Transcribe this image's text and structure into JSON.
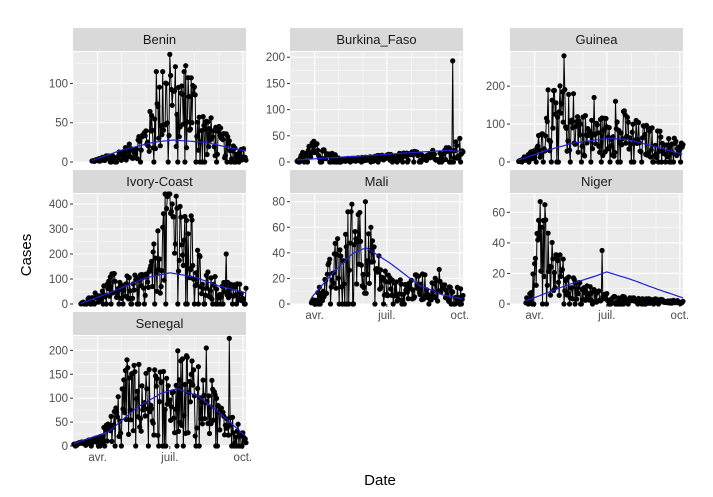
{
  "chart_data": {
    "type": "line",
    "facet": "wrap",
    "xlabel": "Date",
    "ylabel": "Cases",
    "x_domain": [
      "2020-03-01",
      "2020-10-05"
    ],
    "x_ticks": [
      {
        "label": "avr.",
        "date": "2020-04-01"
      },
      {
        "label": "juil.",
        "date": "2020-07-01"
      },
      {
        "label": "oct.",
        "date": "2020-10-01"
      }
    ],
    "colors": {
      "series": "#000000",
      "smooth": "#1f1fd6",
      "panel_bg": "#ebebeb",
      "grid": "#ffffff",
      "strip_bg": "#d9d9d9"
    },
    "panels": [
      {
        "name": "Benin",
        "ylim": [
          0,
          140
        ],
        "yticks": [
          0,
          50,
          100
        ],
        "start": "2020-03-25",
        "end": "2020-10-05",
        "keypoints": [
          [
            "2020-03-25",
            1
          ],
          [
            "2020-04-20",
            6
          ],
          [
            "2020-05-15",
            14
          ],
          [
            "2020-06-05",
            35
          ],
          [
            "2020-06-20",
            60
          ],
          [
            "2020-07-01",
            85
          ],
          [
            "2020-07-15",
            65
          ],
          [
            "2020-07-25",
            80
          ],
          [
            "2020-08-10",
            40
          ],
          [
            "2020-08-25",
            30
          ],
          [
            "2020-09-10",
            20
          ],
          [
            "2020-10-05",
            10
          ]
        ],
        "spikes": [
          [
            "2020-06-14",
            115
          ],
          [
            "2020-06-22",
            115
          ],
          [
            "2020-07-01",
            137
          ],
          [
            "2020-07-06",
            90
          ],
          [
            "2020-07-12",
            95
          ],
          [
            "2020-07-19",
            115
          ]
        ],
        "smooth": [
          [
            "2020-03-25",
            2
          ],
          [
            "2020-05-01",
            15
          ],
          [
            "2020-06-10",
            25
          ],
          [
            "2020-07-05",
            28
          ],
          [
            "2020-08-15",
            25
          ],
          [
            "2020-09-15",
            18
          ],
          [
            "2020-10-05",
            14
          ]
        ]
      },
      {
        "name": "Burkina_Faso",
        "ylim": [
          0,
          210
        ],
        "yticks": [
          0,
          50,
          100,
          150,
          200
        ],
        "start": "2020-03-10",
        "end": "2020-10-05",
        "keypoints": [
          [
            "2020-03-10",
            2
          ],
          [
            "2020-03-28",
            25
          ],
          [
            "2020-04-15",
            12
          ],
          [
            "2020-05-10",
            4
          ],
          [
            "2020-06-10",
            6
          ],
          [
            "2020-07-10",
            9
          ],
          [
            "2020-08-10",
            12
          ],
          [
            "2020-09-10",
            15
          ],
          [
            "2020-09-25",
            25
          ],
          [
            "2020-10-05",
            22
          ]
        ],
        "spikes": [
          [
            "2020-09-22",
            193
          ],
          [
            "2020-10-01",
            45
          ]
        ],
        "smooth": [
          [
            "2020-03-10",
            4
          ],
          [
            "2020-05-01",
            9
          ],
          [
            "2020-06-15",
            13
          ],
          [
            "2020-08-01",
            18
          ],
          [
            "2020-09-15",
            22
          ],
          [
            "2020-10-05",
            20
          ]
        ]
      },
      {
        "name": "Guinea",
        "ylim": [
          0,
          290
        ],
        "yticks": [
          0,
          100,
          200
        ],
        "start": "2020-03-12",
        "end": "2020-10-05",
        "keypoints": [
          [
            "2020-03-12",
            1
          ],
          [
            "2020-04-01",
            20
          ],
          [
            "2020-04-15",
            80
          ],
          [
            "2020-05-01",
            120
          ],
          [
            "2020-05-20",
            95
          ],
          [
            "2020-06-10",
            65
          ],
          [
            "2020-07-01",
            70
          ],
          [
            "2020-07-20",
            80
          ],
          [
            "2020-08-10",
            60
          ],
          [
            "2020-09-01",
            50
          ],
          [
            "2020-09-20",
            40
          ],
          [
            "2020-10-05",
            30
          ]
        ],
        "spikes": [
          [
            "2020-04-18",
            190
          ],
          [
            "2020-05-08",
            280
          ],
          [
            "2020-05-20",
            180
          ],
          [
            "2020-06-15",
            170
          ],
          [
            "2020-07-12",
            160
          ]
        ],
        "smooth": [
          [
            "2020-03-12",
            5
          ],
          [
            "2020-04-15",
            30
          ],
          [
            "2020-05-20",
            50
          ],
          [
            "2020-07-01",
            62
          ],
          [
            "2020-07-25",
            60
          ],
          [
            "2020-09-01",
            40
          ],
          [
            "2020-10-05",
            20
          ]
        ]
      },
      {
        "name": "Ivory-Coast",
        "ylim": [
          0,
          440
        ],
        "yticks": [
          0,
          100,
          200,
          300,
          400
        ],
        "start": "2020-03-11",
        "end": "2020-10-05",
        "keypoints": [
          [
            "2020-03-11",
            1
          ],
          [
            "2020-04-01",
            30
          ],
          [
            "2020-04-20",
            70
          ],
          [
            "2020-05-15",
            60
          ],
          [
            "2020-06-05",
            90
          ],
          [
            "2020-06-20",
            200
          ],
          [
            "2020-07-01",
            350
          ],
          [
            "2020-07-15",
            250
          ],
          [
            "2020-07-25",
            230
          ],
          [
            "2020-08-10",
            90
          ],
          [
            "2020-09-01",
            60
          ],
          [
            "2020-09-20",
            50
          ],
          [
            "2020-10-05",
            40
          ]
        ],
        "spikes": [
          [
            "2020-06-28",
            430
          ],
          [
            "2020-07-04",
            400
          ],
          [
            "2020-07-14",
            390
          ],
          [
            "2020-07-20",
            350
          ],
          [
            "2020-09-10",
            200
          ]
        ],
        "smooth": [
          [
            "2020-03-11",
            2
          ],
          [
            "2020-04-20",
            50
          ],
          [
            "2020-06-01",
            105
          ],
          [
            "2020-07-01",
            125
          ],
          [
            "2020-08-01",
            108
          ],
          [
            "2020-09-01",
            72
          ],
          [
            "2020-10-05",
            45
          ]
        ]
      },
      {
        "name": "Mali",
        "ylim": [
          0,
          86
        ],
        "yticks": [
          0,
          20,
          40,
          60,
          80
        ],
        "start": "2020-03-28",
        "end": "2020-10-05",
        "keypoints": [
          [
            "2020-03-28",
            1
          ],
          [
            "2020-04-10",
            10
          ],
          [
            "2020-04-25",
            25
          ],
          [
            "2020-05-10",
            40
          ],
          [
            "2020-05-25",
            50
          ],
          [
            "2020-06-10",
            30
          ],
          [
            "2020-06-25",
            20
          ],
          [
            "2020-07-10",
            10
          ],
          [
            "2020-08-01",
            12
          ],
          [
            "2020-08-20",
            15
          ],
          [
            "2020-09-10",
            10
          ],
          [
            "2020-10-05",
            8
          ]
        ],
        "spikes": [
          [
            "2020-05-18",
            78
          ],
          [
            "2020-05-26",
            70
          ],
          [
            "2020-06-04",
            80
          ],
          [
            "2020-06-11",
            60
          ],
          [
            "2020-09-05",
            27
          ]
        ],
        "smooth": [
          [
            "2020-03-28",
            5
          ],
          [
            "2020-04-25",
            25
          ],
          [
            "2020-05-20",
            40
          ],
          [
            "2020-06-05",
            44
          ],
          [
            "2020-07-05",
            32
          ],
          [
            "2020-08-10",
            15
          ],
          [
            "2020-09-10",
            7
          ],
          [
            "2020-10-05",
            4
          ]
        ]
      },
      {
        "name": "Niger",
        "ylim": [
          0,
          72
        ],
        "yticks": [
          0,
          20,
          40,
          60
        ],
        "start": "2020-03-21",
        "end": "2020-10-05",
        "keypoints": [
          [
            "2020-03-21",
            1
          ],
          [
            "2020-04-01",
            15
          ],
          [
            "2020-04-06",
            45
          ],
          [
            "2020-04-12",
            68
          ],
          [
            "2020-04-20",
            30
          ],
          [
            "2020-05-01",
            20
          ],
          [
            "2020-05-15",
            12
          ],
          [
            "2020-06-01",
            8
          ],
          [
            "2020-06-20",
            5
          ],
          [
            "2020-07-15",
            3
          ],
          [
            "2020-08-15",
            2
          ],
          [
            "2020-09-15",
            2
          ],
          [
            "2020-10-05",
            1
          ]
        ],
        "spikes": [
          [
            "2020-04-08",
            67
          ],
          [
            "2020-04-14",
            65
          ],
          [
            "2020-06-25",
            35
          ]
        ],
        "smooth": [
          [
            "2020-03-21",
            2
          ],
          [
            "2020-05-10",
            12
          ],
          [
            "2020-06-15",
            18
          ],
          [
            "2020-07-01",
            21
          ],
          [
            "2020-08-01",
            16
          ],
          [
            "2020-09-01",
            10
          ],
          [
            "2020-10-05",
            4
          ]
        ]
      },
      {
        "name": "Senegal",
        "ylim": [
          0,
          230
        ],
        "yticks": [
          0,
          50,
          100,
          150,
          200
        ],
        "start": "2020-03-02",
        "end": "2020-10-05",
        "keypoints": [
          [
            "2020-03-02",
            2
          ],
          [
            "2020-04-01",
            10
          ],
          [
            "2020-04-20",
            40
          ],
          [
            "2020-05-05",
            90
          ],
          [
            "2020-05-20",
            100
          ],
          [
            "2020-06-10",
            90
          ],
          [
            "2020-06-25",
            110
          ],
          [
            "2020-07-10",
            120
          ],
          [
            "2020-08-01",
            100
          ],
          [
            "2020-08-20",
            80
          ],
          [
            "2020-09-05",
            60
          ],
          [
            "2020-09-20",
            30
          ],
          [
            "2020-10-05",
            20
          ]
        ],
        "spikes": [
          [
            "2020-05-08",
            180
          ],
          [
            "2020-08-16",
            205
          ],
          [
            "2020-09-14",
            225
          ]
        ],
        "smooth": [
          [
            "2020-03-02",
            5
          ],
          [
            "2020-04-15",
            30
          ],
          [
            "2020-05-20",
            80
          ],
          [
            "2020-06-20",
            110
          ],
          [
            "2020-07-10",
            120
          ],
          [
            "2020-08-05",
            105
          ],
          [
            "2020-09-01",
            70
          ],
          [
            "2020-10-05",
            20
          ]
        ]
      }
    ]
  }
}
